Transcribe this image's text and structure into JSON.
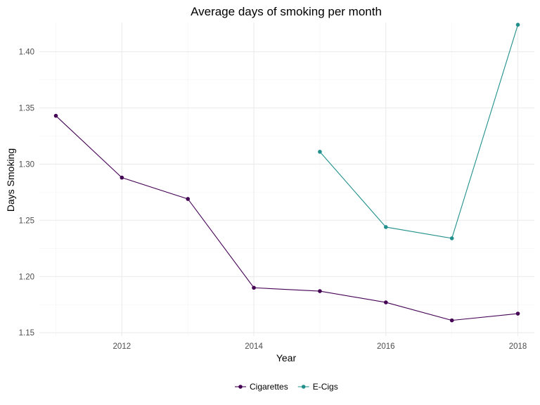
{
  "chart_data": {
    "type": "line",
    "title": "Average days of smoking per month",
    "xlabel": "Year",
    "ylabel": "Days Smoking",
    "xlim": [
      2010.75,
      2018.25
    ],
    "ylim": [
      1.147,
      1.426
    ],
    "x_ticks": [
      2012,
      2014,
      2016,
      2018
    ],
    "y_ticks": [
      1.15,
      1.2,
      1.25,
      1.3,
      1.35,
      1.4
    ],
    "grid": true,
    "legend_position": "bottom",
    "series": [
      {
        "name": "Cigarettes",
        "color": "#440154",
        "x": [
          2011,
          2012,
          2013,
          2014,
          2015,
          2016,
          2017,
          2018
        ],
        "values": [
          1.343,
          1.288,
          1.269,
          1.19,
          1.187,
          1.177,
          1.161,
          1.167
        ]
      },
      {
        "name": "E-Cigs",
        "color": "#21908c",
        "x": [
          2015,
          2016,
          2017,
          2018
        ],
        "values": [
          1.311,
          1.244,
          1.234,
          1.424
        ]
      }
    ]
  }
}
